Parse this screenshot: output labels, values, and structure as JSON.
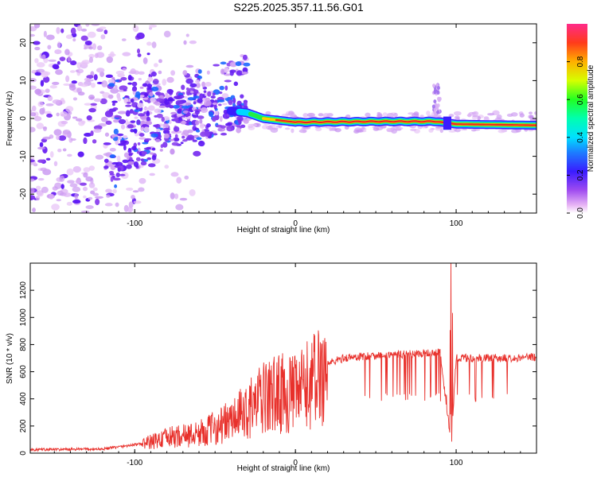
{
  "figure": {
    "title": "S225.2025.357.11.56.G01"
  },
  "chart_data": [
    {
      "type": "heatmap",
      "name": "spectrogram",
      "xlabel": "Height of straight line (km)",
      "ylabel": "Frequency (Hz)",
      "xlim": [
        -165,
        150
      ],
      "ylim": [
        -25,
        25
      ],
      "xticks": [
        -100,
        0,
        100
      ],
      "yticks": [
        -20,
        -10,
        0,
        10,
        20
      ],
      "colorbar": {
        "label": "Normalized spectral amplitude",
        "range": [
          0,
          1
        ],
        "ticks": [
          0.0,
          0.2,
          0.4,
          0.6,
          0.8
        ]
      },
      "ridge": {
        "description_points": [
          {
            "x": -40,
            "y": 2,
            "amp": 0.2
          },
          {
            "x": -30,
            "y": 1.5,
            "amp": 0.4
          },
          {
            "x": -20,
            "y": 0,
            "amp": 0.6
          },
          {
            "x": -10,
            "y": -0.5,
            "amp": 0.7
          },
          {
            "x": 0,
            "y": -1,
            "amp": 0.8
          },
          {
            "x": 50,
            "y": -0.8,
            "amp": 0.9
          },
          {
            "x": 88,
            "y": -0.8,
            "amp": 0.95
          },
          {
            "x": 100,
            "y": -1.5,
            "amp": 0.6
          },
          {
            "x": 150,
            "y": -1.8,
            "amp": 0.9
          }
        ]
      }
    },
    {
      "type": "line",
      "name": "snr",
      "xlabel": "Height of straight line (km)",
      "ylabel": "SNR (10 * v/v)",
      "xlim": [
        -165,
        150
      ],
      "ylim": [
        0,
        1400
      ],
      "xticks": [
        -100,
        0,
        100
      ],
      "yticks": [
        0,
        200,
        400,
        600,
        800,
        1000,
        1200
      ],
      "series": [
        {
          "name": "SNR",
          "color": "#e8302b",
          "envelope": [
            {
              "x": -165,
              "y": 25
            },
            {
              "x": -120,
              "y": 30
            },
            {
              "x": -95,
              "y": 70
            },
            {
              "x": -80,
              "y": 120
            },
            {
              "x": -60,
              "y": 150
            },
            {
              "x": -40,
              "y": 250
            },
            {
              "x": -30,
              "y": 330
            },
            {
              "x": -20,
              "y": 420
            },
            {
              "x": -10,
              "y": 470
            },
            {
              "x": 0,
              "y": 450
            },
            {
              "x": 10,
              "y": 550
            },
            {
              "x": 20,
              "y": 660
            },
            {
              "x": 30,
              "y": 700
            },
            {
              "x": 50,
              "y": 720
            },
            {
              "x": 70,
              "y": 730
            },
            {
              "x": 90,
              "y": 740
            },
            {
              "x": 97,
              "y": 60
            },
            {
              "x": 100,
              "y": 700
            },
            {
              "x": 130,
              "y": 700
            },
            {
              "x": 150,
              "y": 710
            }
          ],
          "spike": {
            "x": 97,
            "y": 1400
          }
        }
      ]
    }
  ]
}
